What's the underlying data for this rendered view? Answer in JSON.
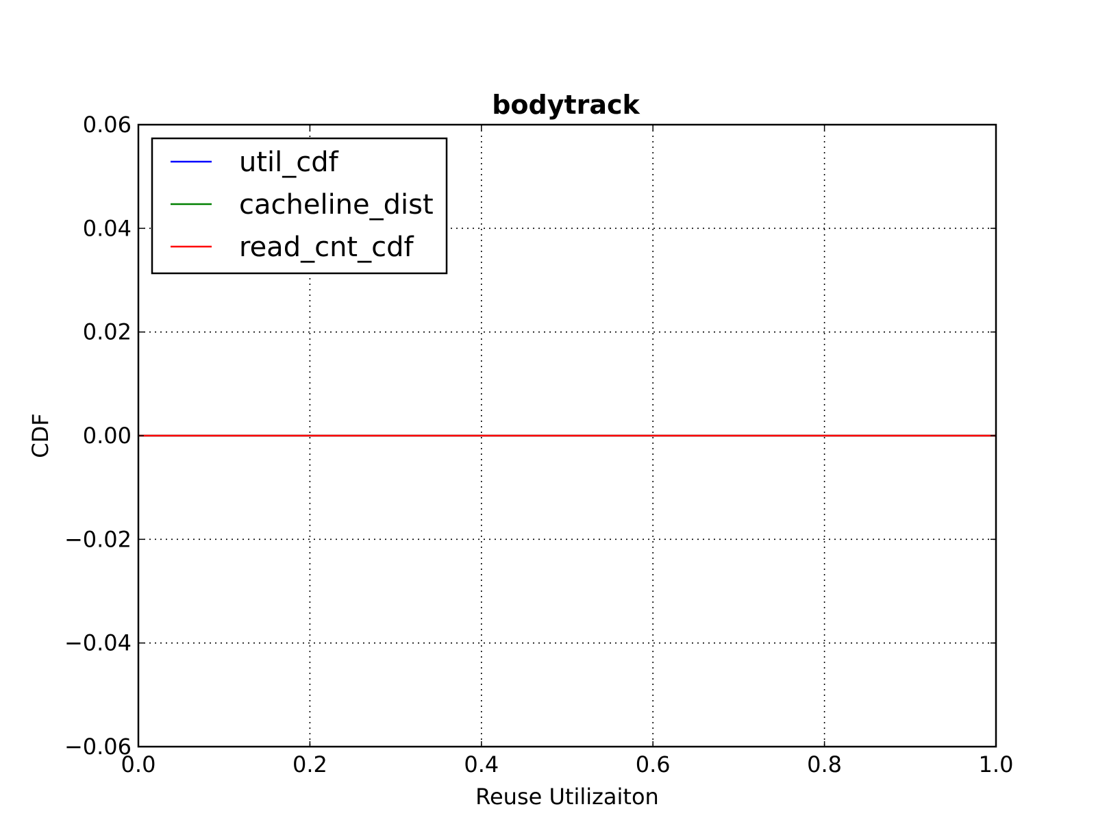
{
  "chart_data": {
    "type": "line",
    "title": "bodytrack",
    "xlabel": "Reuse Utilizaiton",
    "ylabel": "CDF",
    "xlim": [
      0.0,
      1.0
    ],
    "ylim": [
      -0.06,
      0.06
    ],
    "x_ticks": [
      "0.0",
      "0.2",
      "0.4",
      "0.6",
      "0.8",
      "1.0"
    ],
    "y_ticks": [
      "−0.06",
      "−0.04",
      "−0.02",
      "0.00",
      "0.02",
      "0.04",
      "0.06"
    ],
    "grid": true,
    "legend_position": "upper-left",
    "series": [
      {
        "name": "util_cdf",
        "color": "#0000ff",
        "x": [
          0.0,
          1.0
        ],
        "y": [
          0.0,
          0.0
        ]
      },
      {
        "name": "cacheline_dist",
        "color": "#008000",
        "x": [
          0.0,
          1.0
        ],
        "y": [
          0.0,
          0.0
        ]
      },
      {
        "name": "read_cnt_cdf",
        "color": "#ff0000",
        "x": [
          0.0,
          1.0
        ],
        "y": [
          0.0,
          0.0
        ]
      }
    ]
  }
}
